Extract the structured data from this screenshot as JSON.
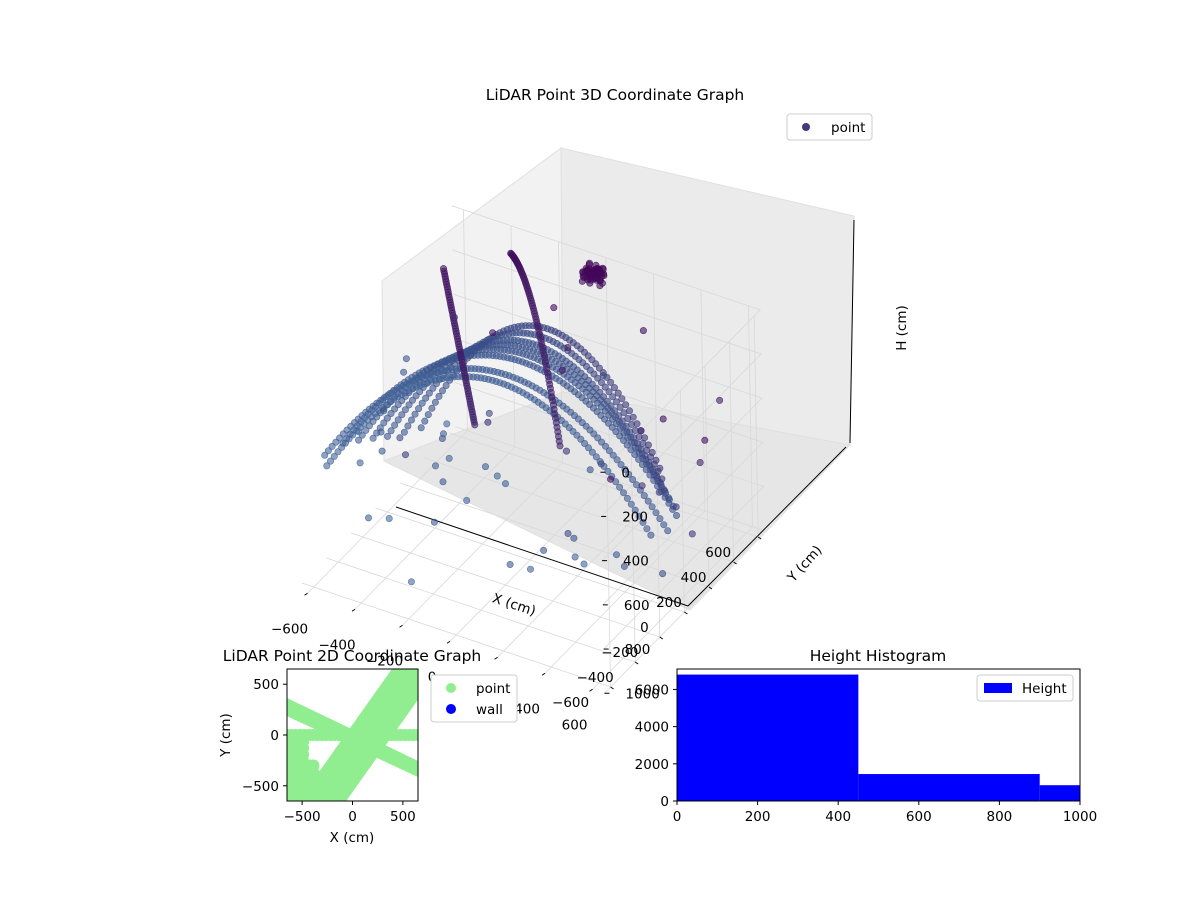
{
  "chart_data": [
    {
      "type": "scatter",
      "title": "LiDAR Point 3D Coordinate Graph",
      "xlabel": "X (cm)",
      "ylabel": "Y (cm)",
      "zlabel": "H (cm)",
      "xlim": [
        -650,
        650
      ],
      "ylim": [
        -650,
        650
      ],
      "zlim": [
        0,
        1000
      ],
      "z_inverted": true,
      "x_ticks": [
        -600,
        -400,
        -200,
        0,
        200,
        400,
        600
      ],
      "y_ticks": [
        -600,
        -400,
        -200,
        0,
        200,
        400,
        600
      ],
      "z_ticks": [
        0,
        200,
        400,
        600,
        800,
        1000
      ],
      "legend": {
        "position": "top-right",
        "entries": [
          "point"
        ]
      },
      "grid": true,
      "colormap": "viridis (dark purple to slate blue by depth)",
      "series": [
        {
          "name": "point",
          "shape": "bowl-like set of arcs and clusters in 3D"
        }
      ]
    },
    {
      "type": "scatter",
      "title": "LiDAR Point 2D Coordinate Graph",
      "xlabel": "X (cm)",
      "ylabel": "Y (cm)",
      "xlim": [
        -650,
        650
      ],
      "ylim": [
        -650,
        650
      ],
      "x_ticks": [
        -500,
        0,
        500
      ],
      "y_ticks": [
        -500,
        0,
        500
      ],
      "legend": {
        "position": "outside right",
        "entries": [
          "point",
          "wall"
        ]
      },
      "series": [
        {
          "name": "point",
          "color": "#90ee90"
        },
        {
          "name": "wall",
          "color": "#0000ff"
        }
      ]
    },
    {
      "type": "bar",
      "title": "Height Histogram",
      "xlim": [
        0,
        1000
      ],
      "ylim": [
        0,
        7100
      ],
      "x_ticks": [
        0,
        200,
        400,
        600,
        800,
        1000
      ],
      "y_ticks": [
        0,
        2000,
        4000,
        6000
      ],
      "bins": [
        [
          0,
          450
        ],
        [
          450,
          900
        ],
        [
          900,
          1000
        ]
      ],
      "values": [
        6800,
        1450,
        850
      ],
      "legend": {
        "position": "top-right",
        "entries": [
          "Height"
        ]
      },
      "series": [
        {
          "name": "Height",
          "color": "#0000ff"
        }
      ]
    }
  ]
}
